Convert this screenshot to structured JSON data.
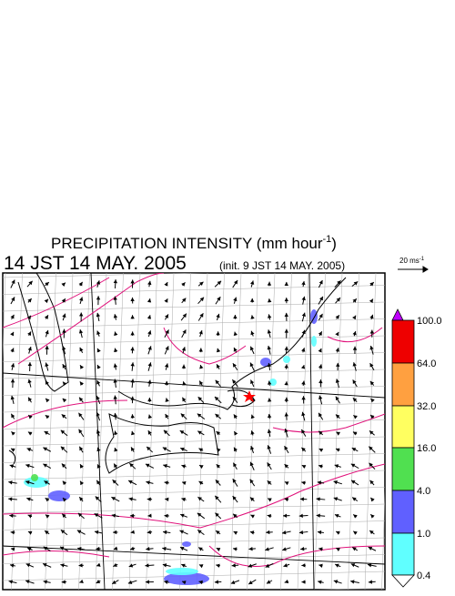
{
  "title": {
    "text": "PRECIPITATION INTENSITY (mm hour",
    "exponent": "-1",
    "close": ")"
  },
  "time": "14 JST 14 MAY. 2005",
  "init": "(init. 9 JST 14 MAY. 2005)",
  "reference_vector": {
    "label": "20 ms",
    "exponent": "-1"
  },
  "colorbar": {
    "labels": [
      "100.0",
      "64.0",
      "32.0",
      "16.0",
      "4.0",
      "1.0",
      "0.4"
    ]
  }
}
